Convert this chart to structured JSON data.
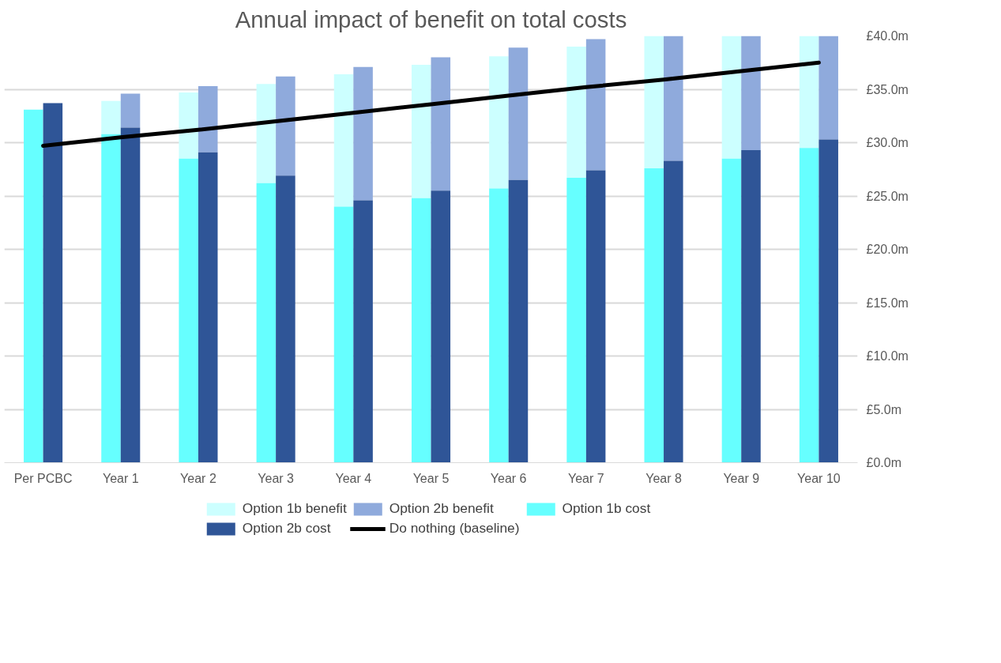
{
  "chart_data": {
    "type": "bar",
    "title": "Annual impact of benefit on total costs",
    "categories": [
      "Per PCBC",
      "Year 1",
      "Year 2",
      "Year 3",
      "Year 4",
      "Year 5",
      "Year 6",
      "Year 7",
      "Year 8",
      "Year 9",
      "Year 10"
    ],
    "series": [
      {
        "name": "Option 1b benefit",
        "color": "#ccffff",
        "values": [
          null,
          3.1,
          6.2,
          9.3,
          12.4,
          12.5,
          12.4,
          12.3,
          12.4,
          11.5,
          10.5
        ],
        "base": [
          null,
          30.8,
          28.5,
          26.2,
          24.0,
          24.8,
          25.7,
          26.7,
          27.6,
          28.5,
          29.5
        ]
      },
      {
        "name": "Option 2b benefit",
        "color": "#8faadc",
        "values": [
          null,
          3.2,
          6.2,
          9.3,
          12.5,
          12.5,
          12.4,
          12.3,
          11.7,
          10.7,
          9.7
        ],
        "base": [
          null,
          31.4,
          29.1,
          26.9,
          24.6,
          25.5,
          26.5,
          27.4,
          28.3,
          29.3,
          30.3
        ]
      },
      {
        "name": "Option 1b cost",
        "color": "#66ffff",
        "values": [
          33.1,
          30.8,
          28.5,
          26.2,
          24.0,
          24.8,
          25.7,
          26.7,
          27.6,
          28.5,
          29.5
        ]
      },
      {
        "name": "Option 2b cost",
        "color": "#2f5597",
        "values": [
          33.7,
          31.4,
          29.1,
          26.9,
          24.6,
          25.5,
          26.5,
          27.4,
          28.3,
          29.3,
          30.3
        ]
      },
      {
        "name": "Do nothing (baseline)",
        "type": "line",
        "color": "#000000",
        "values": [
          29.7,
          30.5,
          31.2,
          32.0,
          32.8,
          33.6,
          34.4,
          35.2,
          35.9,
          36.7,
          37.5
        ]
      }
    ],
    "ylim": [
      0,
      40
    ],
    "yticks": [
      {
        "value": 0,
        "label": "£0.0m"
      },
      {
        "value": 5,
        "label": "£5.0m"
      },
      {
        "value": 10,
        "label": "£10.0m"
      },
      {
        "value": 15,
        "label": "£15.0m"
      },
      {
        "value": 20,
        "label": "£20.0m"
      },
      {
        "value": 25,
        "label": "£25.0m"
      },
      {
        "value": 30,
        "label": "£30.0m"
      },
      {
        "value": 35,
        "label": "£35.0m"
      },
      {
        "value": 40,
        "label": "£40.0m"
      }
    ],
    "grid": "y",
    "legend": "bottom"
  }
}
